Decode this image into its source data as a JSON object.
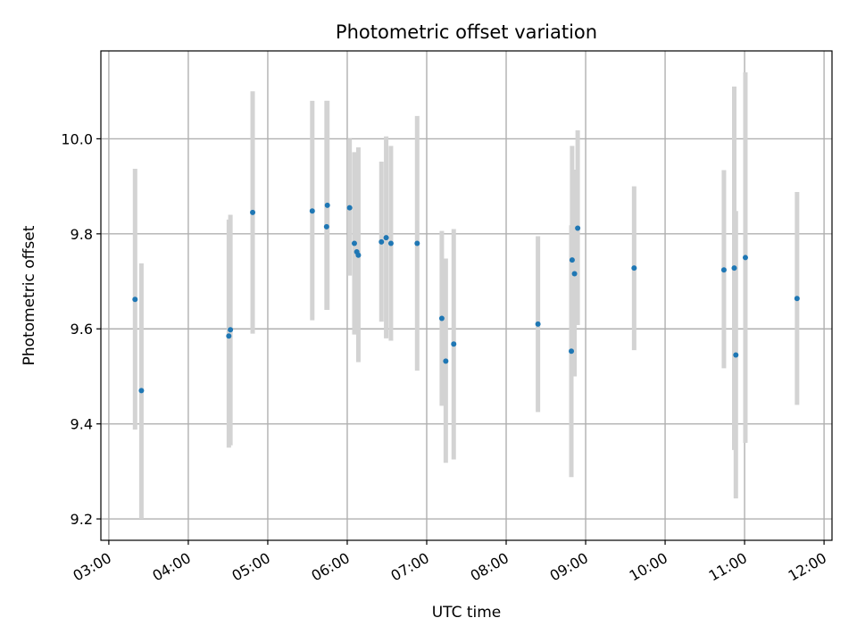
{
  "chart_data": {
    "type": "scatter",
    "title": "Photometric offset variation",
    "xlabel": "UTC time",
    "ylabel": "Photometric offset",
    "x_unit": "hours (UTC)",
    "xlim": [
      2.9,
      12.1
    ],
    "ylim": [
      9.155,
      10.185
    ],
    "x_ticks": [
      3,
      4,
      5,
      6,
      7,
      8,
      9,
      10,
      11,
      12
    ],
    "x_tick_labels": [
      "03:00",
      "04:00",
      "05:00",
      "06:00",
      "07:00",
      "08:00",
      "09:00",
      "10:00",
      "11:00",
      "12:00"
    ],
    "y_ticks": [
      9.2,
      9.4,
      9.6,
      9.8,
      10.0
    ],
    "y_tick_labels": [
      "9.2",
      "9.4",
      "9.6",
      "9.8",
      "10.0"
    ],
    "grid": true,
    "point_color": "#1f77b4",
    "errorbar_color": "#d3d3d3",
    "points": [
      {
        "x": 3.33,
        "y": 9.662,
        "lo": 9.388,
        "hi": 9.937
      },
      {
        "x": 3.41,
        "y": 9.47,
        "lo": 9.2,
        "hi": 9.738
      },
      {
        "x": 4.51,
        "y": 9.585,
        "lo": 9.35,
        "hi": 9.83
      },
      {
        "x": 4.53,
        "y": 9.598,
        "lo": 9.355,
        "hi": 9.84
      },
      {
        "x": 4.81,
        "y": 9.845,
        "lo": 9.59,
        "hi": 10.1
      },
      {
        "x": 5.56,
        "y": 9.848,
        "lo": 9.618,
        "hi": 10.08
      },
      {
        "x": 5.74,
        "y": 9.815,
        "lo": 9.64,
        "hi": 10.08
      },
      {
        "x": 5.75,
        "y": 9.86,
        "lo": 9.64,
        "hi": 10.08
      },
      {
        "x": 6.03,
        "y": 9.855,
        "lo": 9.712,
        "hi": 10.0
      },
      {
        "x": 6.09,
        "y": 9.78,
        "lo": 9.588,
        "hi": 9.972
      },
      {
        "x": 6.12,
        "y": 9.762,
        "lo": 9.59,
        "hi": 9.95
      },
      {
        "x": 6.14,
        "y": 9.755,
        "lo": 9.53,
        "hi": 9.982
      },
      {
        "x": 6.43,
        "y": 9.783,
        "lo": 9.615,
        "hi": 9.952
      },
      {
        "x": 6.49,
        "y": 9.792,
        "lo": 9.58,
        "hi": 10.005
      },
      {
        "x": 6.55,
        "y": 9.78,
        "lo": 9.575,
        "hi": 9.985
      },
      {
        "x": 6.88,
        "y": 9.78,
        "lo": 9.512,
        "hi": 10.048
      },
      {
        "x": 7.19,
        "y": 9.622,
        "lo": 9.438,
        "hi": 9.806
      },
      {
        "x": 7.24,
        "y": 9.532,
        "lo": 9.318,
        "hi": 9.748
      },
      {
        "x": 7.34,
        "y": 9.568,
        "lo": 9.325,
        "hi": 9.81
      },
      {
        "x": 8.4,
        "y": 9.61,
        "lo": 9.425,
        "hi": 9.795
      },
      {
        "x": 8.82,
        "y": 9.553,
        "lo": 9.288,
        "hi": 9.818
      },
      {
        "x": 8.83,
        "y": 9.745,
        "lo": 9.505,
        "hi": 9.985
      },
      {
        "x": 8.86,
        "y": 9.716,
        "lo": 9.5,
        "hi": 9.935
      },
      {
        "x": 8.9,
        "y": 9.812,
        "lo": 9.608,
        "hi": 10.018
      },
      {
        "x": 9.61,
        "y": 9.728,
        "lo": 9.555,
        "hi": 9.9
      },
      {
        "x": 10.74,
        "y": 9.724,
        "lo": 9.517,
        "hi": 9.934
      },
      {
        "x": 10.87,
        "y": 9.728,
        "lo": 9.345,
        "hi": 10.11
      },
      {
        "x": 10.89,
        "y": 9.545,
        "lo": 9.243,
        "hi": 9.848
      },
      {
        "x": 11.01,
        "y": 9.75,
        "lo": 9.36,
        "hi": 10.14
      },
      {
        "x": 11.66,
        "y": 9.664,
        "lo": 9.44,
        "hi": 9.888
      }
    ]
  }
}
